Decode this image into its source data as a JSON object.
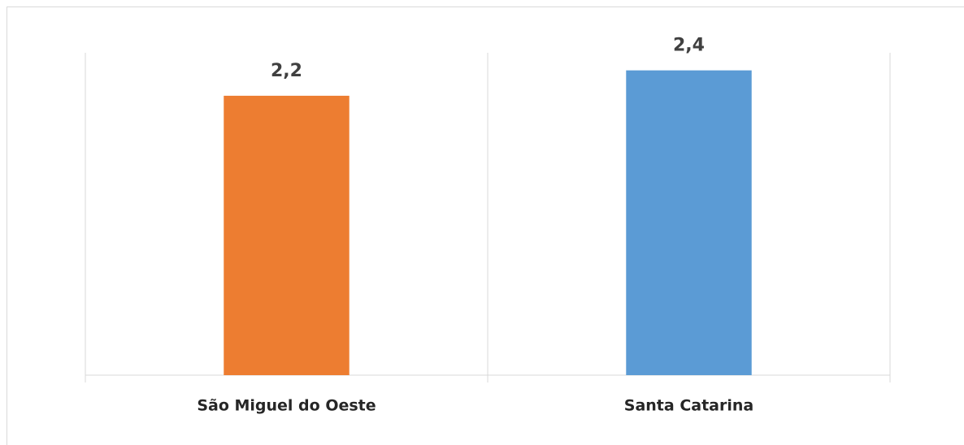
{
  "chart_data": {
    "type": "bar",
    "categories": [
      "São Miguel do Oeste",
      "Santa Catarina"
    ],
    "values": [
      2.2,
      2.4
    ],
    "value_labels": [
      "2,2",
      "2,4"
    ],
    "colors": [
      "#ed7d31",
      "#5b9bd5"
    ],
    "ylim": [
      0,
      2.5
    ]
  }
}
